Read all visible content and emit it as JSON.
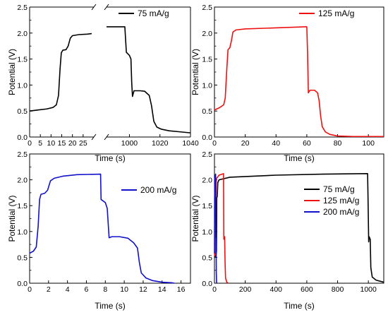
{
  "colors": {
    "black": "#000000",
    "red": "#ee1111",
    "blue": "#1111cc"
  },
  "chart_data": [
    {
      "type": "line",
      "panel": "top-left",
      "broken_x_axis": true,
      "xlabel": "Time (s)",
      "ylabel": "Potential (V)",
      "legend_position": "top-right",
      "ylim": [
        0,
        2.5
      ],
      "y_ticks": [
        0.0,
        0.5,
        1.0,
        1.5,
        2.0,
        2.5
      ],
      "y_tick_labels": [
        "0.0",
        "0.5",
        "1.0",
        "1.5",
        "2.0",
        "2.5"
      ],
      "segment_1": {
        "xlim": [
          0,
          30
        ],
        "x_ticks": [
          0,
          5,
          10,
          15,
          20,
          25
        ],
        "x_tick_labels": [
          "0",
          "5",
          "10",
          "15",
          "20",
          "25"
        ]
      },
      "segment_2": {
        "xlim": [
          985,
          1040
        ],
        "x_ticks": [
          1000,
          1020,
          1040
        ],
        "x_tick_labels": [
          "1000",
          "1020",
          "1040"
        ]
      },
      "series": [
        {
          "name": "75 mA/g",
          "color": "#000000",
          "segment_1": [
            [
              0,
              0.5
            ],
            [
              4,
              0.52
            ],
            [
              8,
              0.54
            ],
            [
              11,
              0.57
            ],
            [
              12.5,
              0.62
            ],
            [
              13.5,
              0.8
            ],
            [
              14.2,
              1.3
            ],
            [
              14.8,
              1.62
            ],
            [
              15.5,
              1.67
            ],
            [
              17,
              1.68
            ],
            [
              18,
              1.75
            ],
            [
              19,
              1.9
            ],
            [
              20,
              1.95
            ],
            [
              23,
              1.97
            ],
            [
              27,
              1.98
            ],
            [
              29,
              1.99
            ]
          ],
          "segment_2": [
            [
              985,
              2.12
            ],
            [
              995,
              2.12
            ],
            [
              997,
              2.12
            ],
            [
              998,
              1.63
            ],
            [
              1000,
              1.57
            ],
            [
              1001,
              1.5
            ],
            [
              1001.5,
              1.05
            ],
            [
              1002,
              0.78
            ],
            [
              1003,
              0.89
            ],
            [
              1007,
              0.89
            ],
            [
              1010,
              0.88
            ],
            [
              1013,
              0.8
            ],
            [
              1014.5,
              0.6
            ],
            [
              1016,
              0.3
            ],
            [
              1018,
              0.19
            ],
            [
              1021,
              0.15
            ],
            [
              1026,
              0.12
            ],
            [
              1033,
              0.1
            ],
            [
              1040,
              0.08
            ]
          ]
        }
      ]
    },
    {
      "type": "line",
      "panel": "top-right",
      "xlabel": "Time (s)",
      "ylabel": "Potential (V)",
      "legend_position": "top-right",
      "xlim": [
        0,
        110
      ],
      "x_ticks": [
        0,
        20,
        40,
        60,
        80,
        100
      ],
      "ylim": [
        0,
        2.5
      ],
      "y_ticks": [
        0.0,
        0.5,
        1.0,
        1.5,
        2.0,
        2.5
      ],
      "y_tick_labels": [
        "0.0",
        "0.5",
        "1.0",
        "1.5",
        "2.0",
        "2.5"
      ],
      "series": [
        {
          "name": "125 mA/g",
          "color": "#ee1111",
          "points": [
            [
              0,
              0.52
            ],
            [
              3,
              0.56
            ],
            [
              6,
              0.62
            ],
            [
              7,
              0.75
            ],
            [
              8,
              1.3
            ],
            [
              8.8,
              1.68
            ],
            [
              10,
              1.72
            ],
            [
              11,
              1.85
            ],
            [
              12,
              2.02
            ],
            [
              14,
              2.06
            ],
            [
              20,
              2.08
            ],
            [
              40,
              2.1
            ],
            [
              59,
              2.12
            ],
            [
              60,
              2.12
            ],
            [
              60.5,
              1.6
            ],
            [
              61,
              0.85
            ],
            [
              62,
              0.9
            ],
            [
              65,
              0.9
            ],
            [
              67,
              0.85
            ],
            [
              68,
              0.7
            ],
            [
              69,
              0.4
            ],
            [
              70,
              0.2
            ],
            [
              72,
              0.1
            ],
            [
              75,
              0.05
            ],
            [
              80,
              0.02
            ],
            [
              90,
              0.01
            ],
            [
              110,
              0.01
            ]
          ]
        }
      ]
    },
    {
      "type": "line",
      "panel": "bottom-left",
      "xlabel": "Time (s)",
      "ylabel": "Potential (V)",
      "legend_position": "top-right",
      "xlim": [
        0,
        17
      ],
      "x_ticks": [
        0,
        2,
        4,
        6,
        8,
        10,
        12,
        14,
        16
      ],
      "ylim": [
        0,
        2.5
      ],
      "y_ticks": [
        0.0,
        0.5,
        1.0,
        1.5,
        2.0,
        2.5
      ],
      "y_tick_labels": [
        "0.0",
        "0.5",
        "1.0",
        "1.5",
        "2.0",
        "2.5"
      ],
      "series": [
        {
          "name": "200 mA/g",
          "color": "#1111cc",
          "points": [
            [
              0,
              0.58
            ],
            [
              0.4,
              0.62
            ],
            [
              0.7,
              0.7
            ],
            [
              0.9,
              1.1
            ],
            [
              1.05,
              1.62
            ],
            [
              1.2,
              1.72
            ],
            [
              1.6,
              1.74
            ],
            [
              1.9,
              1.8
            ],
            [
              2.2,
              1.98
            ],
            [
              2.6,
              2.03
            ],
            [
              3.5,
              2.07
            ],
            [
              5,
              2.1
            ],
            [
              7.5,
              2.11
            ],
            [
              7.55,
              1.62
            ],
            [
              8,
              1.56
            ],
            [
              8.2,
              1.45
            ],
            [
              8.4,
              0.88
            ],
            [
              8.7,
              0.9
            ],
            [
              9.5,
              0.9
            ],
            [
              10.4,
              0.87
            ],
            [
              11,
              0.78
            ],
            [
              11.4,
              0.68
            ],
            [
              11.6,
              0.4
            ],
            [
              11.8,
              0.2
            ],
            [
              12.3,
              0.1
            ],
            [
              13,
              0.05
            ],
            [
              14,
              0.02
            ],
            [
              15,
              0.01
            ],
            [
              15.3,
              0.0
            ]
          ]
        }
      ]
    },
    {
      "type": "line",
      "panel": "bottom-right",
      "xlabel": "Time (s)",
      "ylabel": "Potential (V)",
      "legend_position": "right",
      "xlim": [
        0,
        1100
      ],
      "x_ticks": [
        0,
        200,
        400,
        600,
        800,
        1000
      ],
      "ylim": [
        0,
        2.5
      ],
      "y_ticks": [
        0.0,
        0.5,
        1.0,
        1.5,
        2.0,
        2.5
      ],
      "y_tick_labels": [
        "0.0",
        "0.5",
        "1.0",
        "1.5",
        "2.0",
        "2.5"
      ],
      "series": [
        {
          "name": "75   mA/g",
          "color": "#000000",
          "points": [
            [
              0,
              0.5
            ],
            [
              10,
              0.54
            ],
            [
              13,
              0.62
            ],
            [
              15,
              1.65
            ],
            [
              18,
              1.68
            ],
            [
              22,
              1.95
            ],
            [
              30,
              2.0
            ],
            [
              100,
              2.05
            ],
            [
              400,
              2.09
            ],
            [
              700,
              2.11
            ],
            [
              995,
              2.12
            ],
            [
              998,
              1.6
            ],
            [
              1002,
              0.8
            ],
            [
              1005,
              0.9
            ],
            [
              1012,
              0.85
            ],
            [
              1016,
              0.3
            ],
            [
              1025,
              0.12
            ],
            [
              1050,
              0.06
            ],
            [
              1100,
              0.02
            ]
          ]
        },
        {
          "name": "125 mA/g",
          "color": "#ee1111",
          "points": [
            [
              0,
              0.52
            ],
            [
              7,
              0.62
            ],
            [
              9,
              1.7
            ],
            [
              12,
              2.02
            ],
            [
              30,
              2.09
            ],
            [
              59,
              2.12
            ],
            [
              61,
              0.85
            ],
            [
              66,
              0.9
            ],
            [
              69,
              0.4
            ],
            [
              72,
              0.1
            ],
            [
              80,
              0.02
            ],
            [
              90,
              0.0
            ]
          ]
        },
        {
          "name": "200 mA/g",
          "color": "#1111cc",
          "points": [
            [
              0,
              0.58
            ],
            [
              1,
              1.62
            ],
            [
              2.5,
              2.03
            ],
            [
              7.5,
              2.11
            ],
            [
              8.4,
              0.88
            ],
            [
              10.5,
              0.87
            ],
            [
              12,
              0.2
            ],
            [
              14,
              0.02
            ],
            [
              15.3,
              0.0
            ]
          ]
        }
      ]
    }
  ]
}
